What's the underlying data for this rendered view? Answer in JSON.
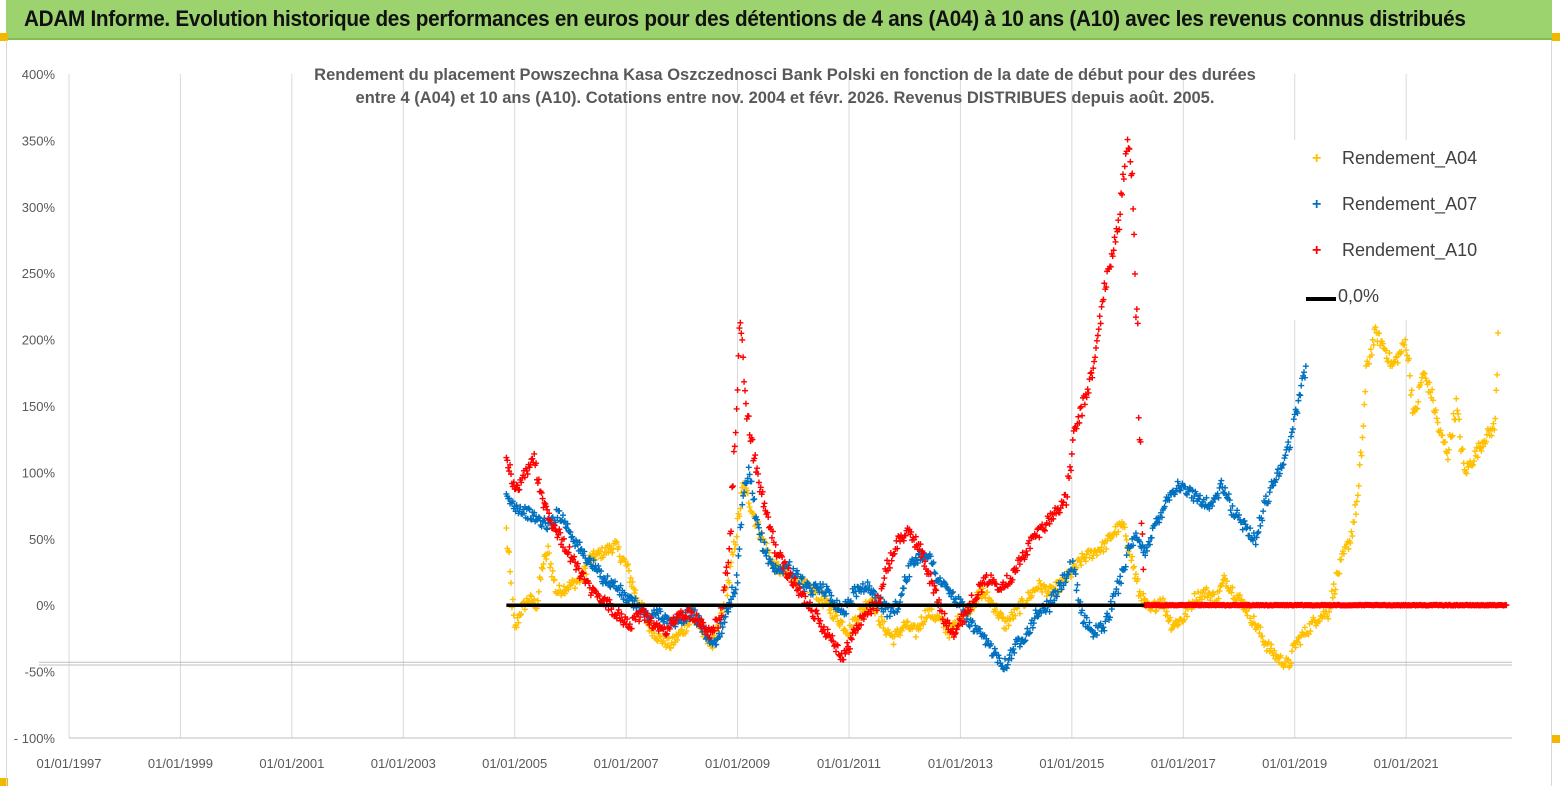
{
  "header": {
    "title": "ADAM Informe. Evolution historique des performances en euros pour des détentions de 4 ans (A04) à 10 ans (A10) avec les revenus connus distribués"
  },
  "chart_data": {
    "type": "scatter",
    "title_line1": "Rendement du placement Powszechna Kasa Oszczednosci Bank Polski en fonction de la date de début pour des durées",
    "title_line2": "entre 4 (A04) et 10 ans (A10).  Cotations entre nov. 2004 et févr. 2026. Revenus  DISTRIBUES depuis août. 2005.",
    "xlabel": "",
    "ylabel": "",
    "xlim": [
      1997.0,
      2022.9
    ],
    "ylim": [
      -100,
      400
    ],
    "y_ticks": [
      400,
      350,
      300,
      250,
      200,
      150,
      100,
      50,
      0,
      -50,
      -100
    ],
    "y_tick_labels": [
      "400%",
      "350%",
      "300%",
      "250%",
      "200%",
      "150%",
      "100%",
      "50%",
      "0%",
      "-50%",
      "- 100%"
    ],
    "x_ticks": [
      1997,
      1999,
      2001,
      2003,
      2005,
      2007,
      2009,
      2011,
      2013,
      2015,
      2017,
      2019,
      2021
    ],
    "x_tick_labels": [
      "01/01/1997",
      "01/01/1999",
      "01/01/2001",
      "01/01/2003",
      "01/01/2005",
      "01/01/2007",
      "01/01/2009",
      "01/01/2011",
      "01/01/2013",
      "01/01/2015",
      "01/01/2017",
      "01/01/2019",
      "01/01/2021"
    ],
    "grid": "vertical",
    "legend_position": "top-right",
    "series": [
      {
        "name": "Rendement_A04",
        "color": "#ffc000",
        "marker": "+",
        "points": [
          [
            2004.85,
            55
          ],
          [
            2005.0,
            -20
          ],
          [
            2005.1,
            -5
          ],
          [
            2005.25,
            5
          ],
          [
            2005.4,
            0
          ],
          [
            2005.5,
            30
          ],
          [
            2005.6,
            40
          ],
          [
            2005.75,
            10
          ],
          [
            2006.0,
            15
          ],
          [
            2006.2,
            20
          ],
          [
            2006.35,
            35
          ],
          [
            2006.6,
            40
          ],
          [
            2006.8,
            45
          ],
          [
            2007.0,
            30
          ],
          [
            2007.2,
            5
          ],
          [
            2007.4,
            -15
          ],
          [
            2007.6,
            -25
          ],
          [
            2007.8,
            -30
          ],
          [
            2008.0,
            -20
          ],
          [
            2008.2,
            -10
          ],
          [
            2008.4,
            -20
          ],
          [
            2008.55,
            -30
          ],
          [
            2008.7,
            -10
          ],
          [
            2008.85,
            20
          ],
          [
            2009.0,
            60
          ],
          [
            2009.1,
            90
          ],
          [
            2009.2,
            80
          ],
          [
            2009.35,
            60
          ],
          [
            2009.5,
            45
          ],
          [
            2009.65,
            30
          ],
          [
            2009.8,
            25
          ],
          [
            2010.0,
            20
          ],
          [
            2010.2,
            15
          ],
          [
            2010.4,
            10
          ],
          [
            2010.6,
            0
          ],
          [
            2010.8,
            -10
          ],
          [
            2011.0,
            -20
          ],
          [
            2011.2,
            -5
          ],
          [
            2011.4,
            5
          ],
          [
            2011.6,
            -15
          ],
          [
            2011.8,
            -25
          ],
          [
            2012.0,
            -15
          ],
          [
            2012.2,
            -20
          ],
          [
            2012.4,
            -5
          ],
          [
            2012.6,
            -10
          ],
          [
            2012.8,
            -20
          ],
          [
            2013.0,
            -10
          ],
          [
            2013.2,
            0
          ],
          [
            2013.4,
            10
          ],
          [
            2013.6,
            0
          ],
          [
            2013.8,
            -15
          ],
          [
            2014.0,
            -5
          ],
          [
            2014.2,
            5
          ],
          [
            2014.4,
            15
          ],
          [
            2014.6,
            10
          ],
          [
            2014.8,
            15
          ],
          [
            2015.0,
            25
          ],
          [
            2015.2,
            35
          ],
          [
            2015.4,
            40
          ],
          [
            2015.6,
            45
          ],
          [
            2015.75,
            55
          ],
          [
            2015.9,
            60
          ],
          [
            2016.0,
            50
          ],
          [
            2016.2,
            10
          ],
          [
            2016.4,
            -5
          ],
          [
            2016.6,
            5
          ],
          [
            2016.8,
            -15
          ],
          [
            2017.0,
            -10
          ],
          [
            2017.2,
            5
          ],
          [
            2017.4,
            10
          ],
          [
            2017.6,
            5
          ],
          [
            2017.75,
            20
          ],
          [
            2017.9,
            10
          ],
          [
            2018.1,
            0
          ],
          [
            2018.3,
            -15
          ],
          [
            2018.5,
            -30
          ],
          [
            2018.7,
            -40
          ],
          [
            2018.9,
            -45
          ],
          [
            2019.0,
            -30
          ],
          [
            2019.2,
            -20
          ],
          [
            2019.4,
            -10
          ],
          [
            2019.6,
            -5
          ],
          [
            2019.75,
            20
          ],
          [
            2019.9,
            40
          ],
          [
            2020.0,
            50
          ],
          [
            2020.15,
            85
          ],
          [
            2020.3,
            180
          ],
          [
            2020.45,
            205
          ],
          [
            2020.6,
            195
          ],
          [
            2020.75,
            180
          ],
          [
            2020.9,
            190
          ],
          [
            2021.0,
            200
          ],
          [
            2021.15,
            140
          ],
          [
            2021.3,
            175
          ],
          [
            2021.45,
            160
          ],
          [
            2021.6,
            130
          ],
          [
            2021.75,
            115
          ],
          [
            2021.9,
            150
          ],
          [
            2022.05,
            100
          ],
          [
            2022.2,
            110
          ],
          [
            2022.4,
            125
          ],
          [
            2022.6,
            135
          ],
          [
            2022.65,
            205
          ]
        ]
      },
      {
        "name": "Rendement_A07",
        "color": "#0070c0",
        "marker": "+",
        "points": [
          [
            2004.85,
            80
          ],
          [
            2005.0,
            75
          ],
          [
            2005.2,
            70
          ],
          [
            2005.4,
            65
          ],
          [
            2005.6,
            60
          ],
          [
            2005.8,
            70
          ],
          [
            2006.0,
            55
          ],
          [
            2006.2,
            40
          ],
          [
            2006.4,
            30
          ],
          [
            2006.6,
            20
          ],
          [
            2006.8,
            15
          ],
          [
            2007.0,
            5
          ],
          [
            2007.2,
            0
          ],
          [
            2007.4,
            -10
          ],
          [
            2007.6,
            -5
          ],
          [
            2007.8,
            -15
          ],
          [
            2008.0,
            -10
          ],
          [
            2008.2,
            -5
          ],
          [
            2008.4,
            -20
          ],
          [
            2008.6,
            -30
          ],
          [
            2008.8,
            -5
          ],
          [
            2009.0,
            20
          ],
          [
            2009.1,
            80
          ],
          [
            2009.2,
            100
          ],
          [
            2009.35,
            60
          ],
          [
            2009.5,
            40
          ],
          [
            2009.7,
            25
          ],
          [
            2009.9,
            30
          ],
          [
            2010.1,
            20
          ],
          [
            2010.3,
            10
          ],
          [
            2010.5,
            15
          ],
          [
            2010.7,
            5
          ],
          [
            2010.9,
            -5
          ],
          [
            2011.1,
            10
          ],
          [
            2011.3,
            15
          ],
          [
            2011.5,
            5
          ],
          [
            2011.7,
            -5
          ],
          [
            2011.9,
            0
          ],
          [
            2012.0,
            20
          ],
          [
            2012.2,
            35
          ],
          [
            2012.4,
            40
          ],
          [
            2012.6,
            20
          ],
          [
            2012.8,
            10
          ],
          [
            2013.0,
            0
          ],
          [
            2013.2,
            -15
          ],
          [
            2013.4,
            -25
          ],
          [
            2013.6,
            -35
          ],
          [
            2013.8,
            -45
          ],
          [
            2014.0,
            -30
          ],
          [
            2014.2,
            -20
          ],
          [
            2014.4,
            -5
          ],
          [
            2014.6,
            0
          ],
          [
            2014.8,
            15
          ],
          [
            2015.0,
            30
          ],
          [
            2015.2,
            -10
          ],
          [
            2015.4,
            -20
          ],
          [
            2015.6,
            -15
          ],
          [
            2015.8,
            10
          ],
          [
            2016.0,
            40
          ],
          [
            2016.15,
            50
          ],
          [
            2016.3,
            40
          ],
          [
            2016.5,
            60
          ],
          [
            2016.7,
            80
          ],
          [
            2016.9,
            90
          ],
          [
            2017.1,
            85
          ],
          [
            2017.3,
            80
          ],
          [
            2017.5,
            75
          ],
          [
            2017.7,
            90
          ],
          [
            2017.9,
            70
          ],
          [
            2018.1,
            60
          ],
          [
            2018.3,
            50
          ],
          [
            2018.5,
            80
          ],
          [
            2018.7,
            100
          ],
          [
            2018.9,
            120
          ],
          [
            2019.0,
            140
          ],
          [
            2019.1,
            160
          ],
          [
            2019.2,
            180
          ]
        ]
      },
      {
        "name": "Rendement_A10",
        "color": "#ff0000",
        "marker": "+",
        "points": [
          [
            2004.85,
            115
          ],
          [
            2005.0,
            85
          ],
          [
            2005.2,
            100
          ],
          [
            2005.35,
            110
          ],
          [
            2005.5,
            80
          ],
          [
            2005.7,
            60
          ],
          [
            2005.9,
            45
          ],
          [
            2006.1,
            30
          ],
          [
            2006.3,
            15
          ],
          [
            2006.5,
            5
          ],
          [
            2006.7,
            0
          ],
          [
            2006.9,
            -10
          ],
          [
            2007.1,
            -15
          ],
          [
            2007.3,
            -5
          ],
          [
            2007.5,
            -15
          ],
          [
            2007.7,
            -20
          ],
          [
            2007.9,
            -10
          ],
          [
            2008.1,
            -5
          ],
          [
            2008.3,
            -10
          ],
          [
            2008.5,
            -20
          ],
          [
            2008.7,
            -10
          ],
          [
            2008.85,
            40
          ],
          [
            2009.0,
            160
          ],
          [
            2009.05,
            220
          ],
          [
            2009.15,
            150
          ],
          [
            2009.3,
            110
          ],
          [
            2009.5,
            70
          ],
          [
            2009.7,
            40
          ],
          [
            2009.9,
            25
          ],
          [
            2010.1,
            10
          ],
          [
            2010.3,
            0
          ],
          [
            2010.5,
            -15
          ],
          [
            2010.7,
            -25
          ],
          [
            2010.9,
            -40
          ],
          [
            2011.1,
            -20
          ],
          [
            2011.3,
            -5
          ],
          [
            2011.5,
            0
          ],
          [
            2011.7,
            30
          ],
          [
            2011.9,
            50
          ],
          [
            2012.1,
            55
          ],
          [
            2012.3,
            40
          ],
          [
            2012.5,
            15
          ],
          [
            2012.7,
            -10
          ],
          [
            2012.9,
            -20
          ],
          [
            2013.1,
            -5
          ],
          [
            2013.3,
            10
          ],
          [
            2013.5,
            20
          ],
          [
            2013.7,
            15
          ],
          [
            2013.9,
            20
          ],
          [
            2014.1,
            35
          ],
          [
            2014.3,
            50
          ],
          [
            2014.5,
            60
          ],
          [
            2014.7,
            70
          ],
          [
            2014.9,
            80
          ],
          [
            2015.05,
            130
          ],
          [
            2015.2,
            150
          ],
          [
            2015.4,
            180
          ],
          [
            2015.55,
            230
          ],
          [
            2015.7,
            260
          ],
          [
            2015.85,
            290
          ],
          [
            2016.0,
            350
          ],
          [
            2016.1,
            320
          ],
          [
            2016.3,
            0
          ],
          [
            2017.0,
            0
          ],
          [
            2018.0,
            0
          ],
          [
            2019.0,
            0
          ],
          [
            2020.0,
            0
          ],
          [
            2021.0,
            0
          ],
          [
            2022.0,
            0
          ],
          [
            2022.8,
            0
          ]
        ]
      },
      {
        "name": "0,0%",
        "color": "#000000",
        "marker": "line",
        "points": [
          [
            2004.85,
            0
          ],
          [
            2016.3,
            0
          ]
        ]
      }
    ]
  }
}
